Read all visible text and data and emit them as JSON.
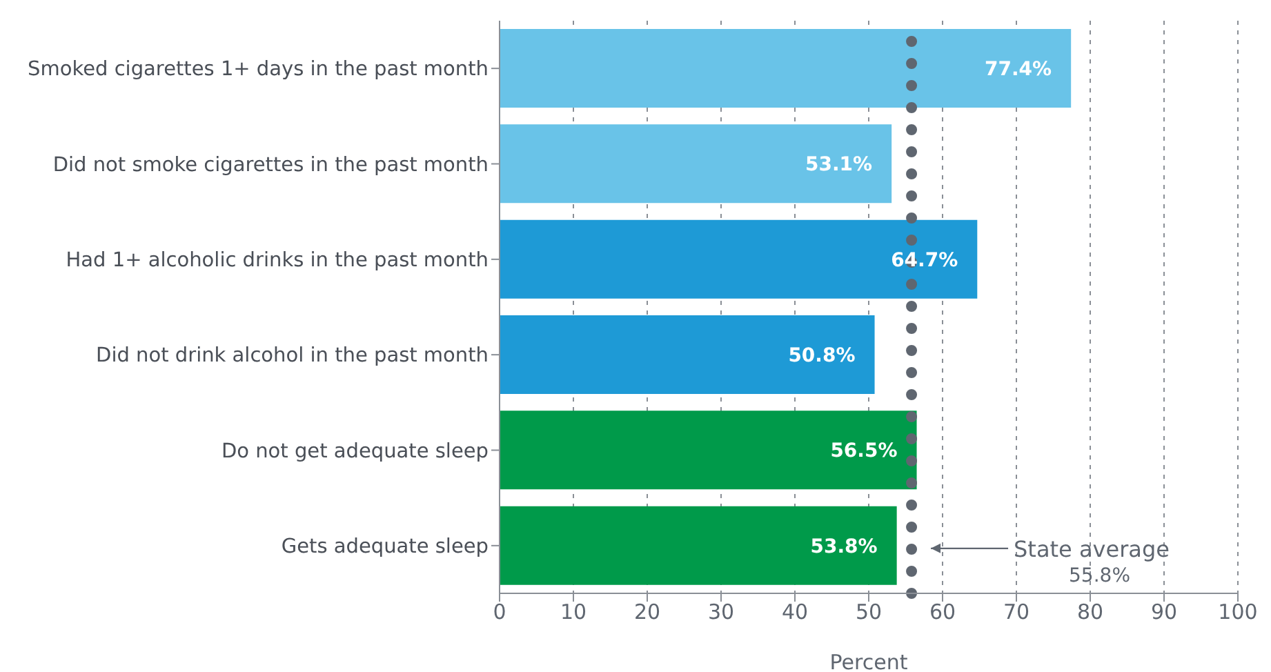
{
  "chart_data": {
    "type": "bar",
    "orientation": "horizontal",
    "xlabel": "Percent",
    "categories": [
      "Smoked cigarettes 1+ days in the past month",
      "Did not smoke cigarettes in the past month",
      "Had 1+ alcoholic drinks in the past month",
      "Did not drink alcohol in the past month",
      "Do not get adequate sleep",
      "Gets adequate sleep"
    ],
    "values": [
      77.4,
      53.1,
      64.7,
      50.8,
      56.5,
      53.8
    ],
    "colors": [
      "#69c3e8",
      "#69c3e8",
      "#1e9ad6",
      "#1e9ad6",
      "#009a4a",
      "#009a4a"
    ],
    "value_labels": [
      "77.4%",
      "53.1%",
      "64.7%",
      "50.8%",
      "56.5%",
      "53.8%"
    ],
    "xlim": [
      0,
      100
    ],
    "xticks": [
      0,
      10,
      20,
      30,
      40,
      50,
      60,
      70,
      80,
      90,
      100
    ],
    "grid": "x",
    "ref_lines": [
      {
        "axis": "x",
        "value": 55.8,
        "label": "State average",
        "color": "#5f6670",
        "line_style": "dotted"
      }
    ],
    "annotations": [
      "55.8%"
    ]
  }
}
